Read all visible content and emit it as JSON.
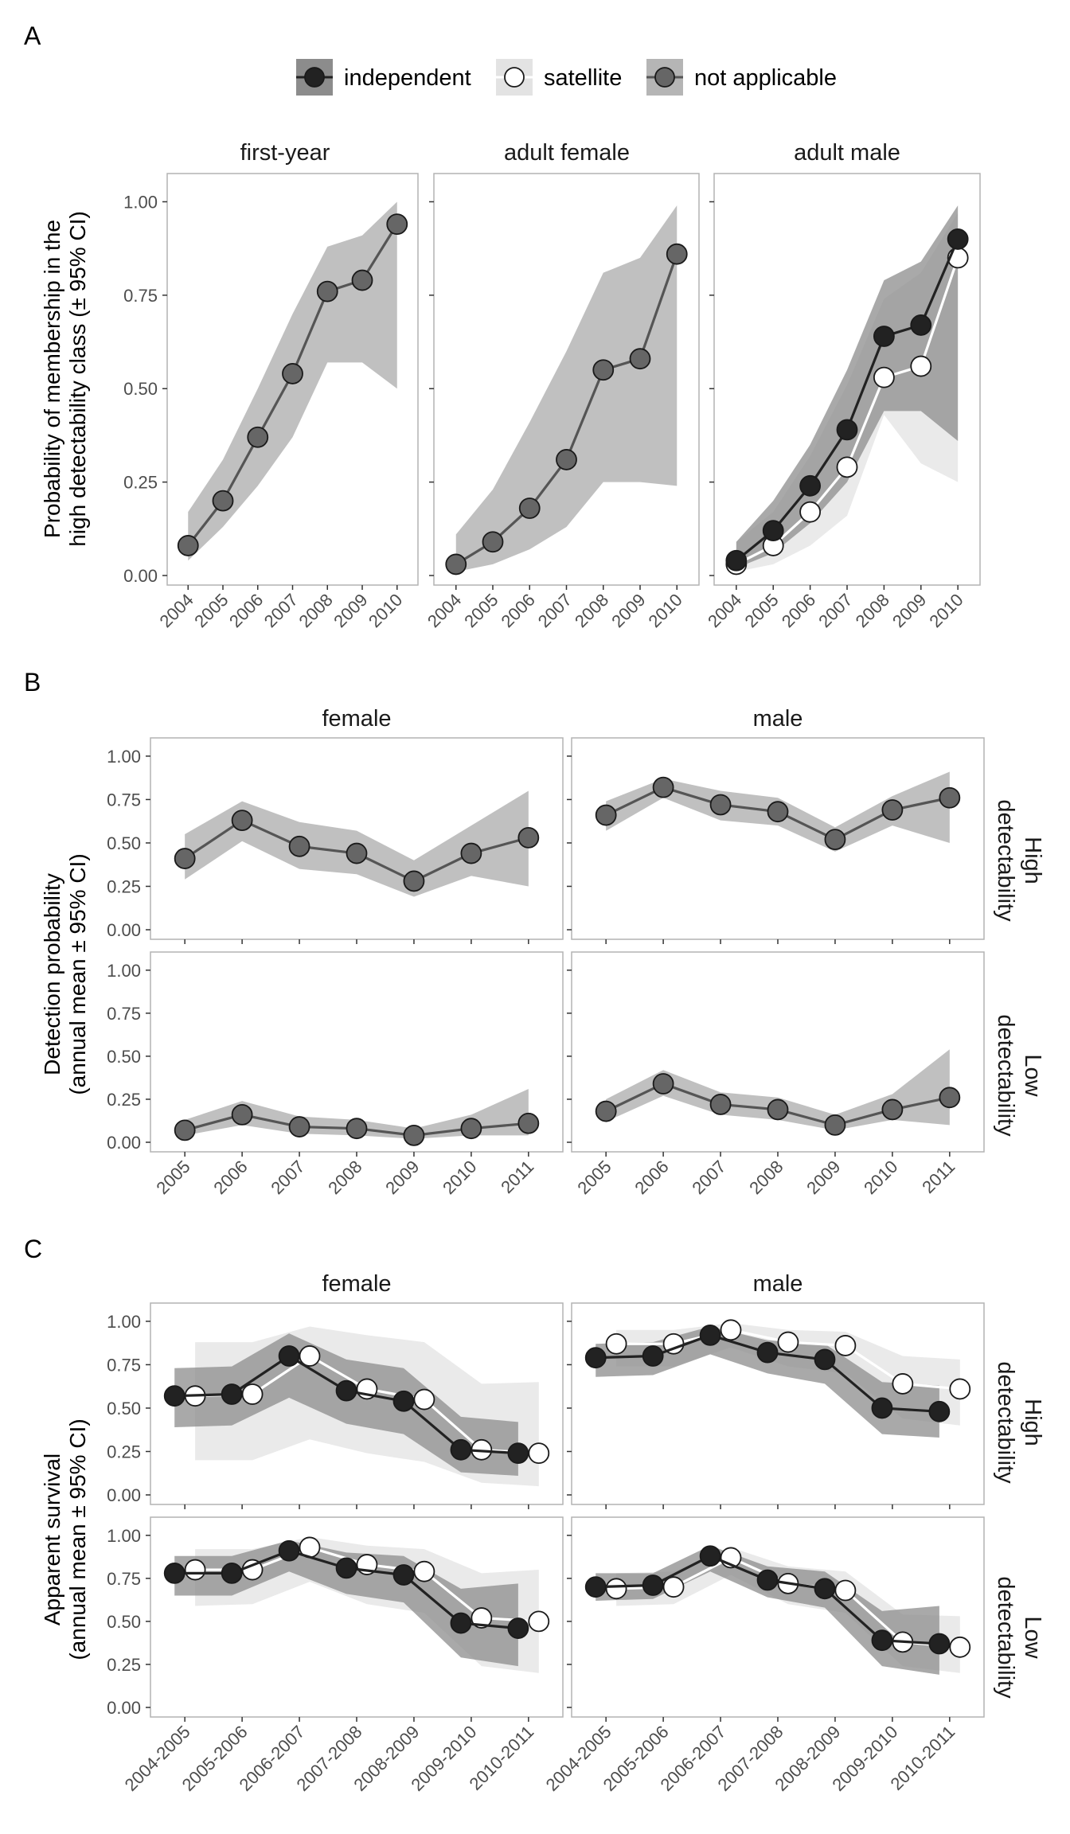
{
  "legend": {
    "items": [
      {
        "label": "independent",
        "fill": "#222222",
        "band": "#8c8c8c",
        "line": "#222222"
      },
      {
        "label": "satellite",
        "fill": "#ffffff",
        "band": "#e3e3e3",
        "line": "#ffffff"
      },
      {
        "label": "not applicable",
        "fill": "#666666",
        "band": "#b5b5b5",
        "line": "#555555"
      }
    ]
  },
  "chart_data": [
    {
      "panel": "A",
      "type": "line",
      "ylabel": [
        "Probability of membership in the",
        "high detectability class (± 95% CI)"
      ],
      "ylim": [
        0,
        1.05
      ],
      "yticks": [
        "0.00",
        "0.25",
        "0.50",
        "0.75",
        "1.00"
      ],
      "categories": [
        "2004",
        "2005",
        "2006",
        "2007",
        "2008",
        "2009",
        "2010"
      ],
      "facets": [
        {
          "title": "first-year",
          "series": [
            {
              "group": "not applicable",
              "values": [
                0.08,
                0.2,
                0.37,
                0.54,
                0.76,
                0.79,
                0.94
              ],
              "lower": [
                0.04,
                0.13,
                0.24,
                0.37,
                0.57,
                0.57,
                0.5
              ],
              "upper": [
                0.17,
                0.31,
                0.5,
                0.7,
                0.88,
                0.91,
                1.0
              ]
            }
          ]
        },
        {
          "title": "adult female",
          "series": [
            {
              "group": "not applicable",
              "values": [
                0.03,
                0.09,
                0.18,
                0.31,
                0.55,
                0.58,
                0.86
              ],
              "lower": [
                0.01,
                0.03,
                0.07,
                0.13,
                0.25,
                0.25,
                0.24
              ],
              "upper": [
                0.11,
                0.23,
                0.41,
                0.6,
                0.81,
                0.85,
                0.99
              ]
            }
          ]
        },
        {
          "title": "adult male",
          "series": [
            {
              "group": "satellite",
              "values": [
                0.03,
                0.08,
                0.17,
                0.29,
                0.53,
                0.56,
                0.85
              ],
              "lower": [
                0.01,
                0.03,
                0.08,
                0.16,
                0.43,
                0.3,
                0.25
              ],
              "upper": [
                0.09,
                0.17,
                0.32,
                0.51,
                0.74,
                0.81,
                0.97
              ]
            },
            {
              "group": "independent",
              "values": [
                0.04,
                0.12,
                0.24,
                0.39,
                0.64,
                0.67,
                0.9
              ],
              "lower": [
                0.02,
                0.06,
                0.14,
                0.25,
                0.44,
                0.44,
                0.36
              ],
              "upper": [
                0.09,
                0.2,
                0.35,
                0.55,
                0.79,
                0.84,
                0.99
              ]
            }
          ]
        }
      ]
    },
    {
      "panel": "B",
      "type": "line",
      "ylabel": [
        "Detection probability",
        "(annual mean ± 95% CI)"
      ],
      "ylim": [
        0,
        1.05
      ],
      "yticks": [
        "0.00",
        "0.25",
        "0.50",
        "0.75",
        "1.00"
      ],
      "categories": [
        "2005",
        "2006",
        "2007",
        "2008",
        "2009",
        "2010",
        "2011"
      ],
      "col_titles": [
        "female",
        "male"
      ],
      "row_titles": [
        [
          "High",
          "detectability"
        ],
        [
          "Low",
          "detectability"
        ]
      ],
      "facets": [
        {
          "row": 0,
          "col": 0,
          "series": [
            {
              "group": "not applicable",
              "values": [
                0.41,
                0.63,
                0.48,
                0.44,
                0.28,
                0.44,
                0.53
              ],
              "lower": [
                0.29,
                0.51,
                0.35,
                0.32,
                0.19,
                0.31,
                0.25
              ],
              "upper": [
                0.55,
                0.74,
                0.62,
                0.57,
                0.4,
                0.6,
                0.8
              ]
            }
          ]
        },
        {
          "row": 0,
          "col": 1,
          "series": [
            {
              "group": "not applicable",
              "values": [
                0.66,
                0.82,
                0.72,
                0.68,
                0.52,
                0.69,
                0.76
              ],
              "lower": [
                0.57,
                0.76,
                0.63,
                0.6,
                0.45,
                0.6,
                0.5
              ],
              "upper": [
                0.74,
                0.87,
                0.8,
                0.76,
                0.59,
                0.77,
                0.91
              ]
            }
          ]
        },
        {
          "row": 1,
          "col": 0,
          "series": [
            {
              "group": "not applicable",
              "values": [
                0.07,
                0.16,
                0.09,
                0.08,
                0.04,
                0.08,
                0.11
              ],
              "lower": [
                0.04,
                0.1,
                0.05,
                0.04,
                0.02,
                0.04,
                0.04
              ],
              "upper": [
                0.13,
                0.24,
                0.15,
                0.13,
                0.08,
                0.16,
                0.31
              ]
            }
          ]
        },
        {
          "row": 1,
          "col": 1,
          "series": [
            {
              "group": "not applicable",
              "values": [
                0.18,
                0.34,
                0.22,
                0.19,
                0.1,
                0.19,
                0.26
              ],
              "lower": [
                0.12,
                0.27,
                0.16,
                0.13,
                0.07,
                0.13,
                0.1
              ],
              "upper": [
                0.25,
                0.42,
                0.29,
                0.26,
                0.16,
                0.28,
                0.54
              ]
            }
          ]
        }
      ]
    },
    {
      "panel": "C",
      "type": "line",
      "ylabel": [
        "Apparent survival",
        "(annual mean ± 95% CI)"
      ],
      "ylim": [
        0,
        1.05
      ],
      "yticks": [
        "0.00",
        "0.25",
        "0.50",
        "0.75",
        "1.00"
      ],
      "categories": [
        "2004-2005",
        "2005-2006",
        "2006-2007",
        "2007-2008",
        "2008-2009",
        "2009-2010",
        "2010-2011"
      ],
      "col_titles": [
        "female",
        "male"
      ],
      "row_titles": [
        [
          "High",
          "detectability"
        ],
        [
          "Low",
          "detectability"
        ]
      ],
      "dodge": 0.18,
      "facets": [
        {
          "row": 0,
          "col": 0,
          "series": [
            {
              "group": "satellite",
              "values": [
                0.57,
                0.58,
                0.8,
                0.61,
                0.55,
                0.26,
                0.24
              ],
              "lower": [
                0.2,
                0.2,
                0.32,
                0.24,
                0.19,
                0.07,
                0.05
              ],
              "upper": [
                0.88,
                0.88,
                0.97,
                0.92,
                0.88,
                0.64,
                0.65
              ]
            },
            {
              "group": "independent",
              "values": [
                0.57,
                0.58,
                0.8,
                0.6,
                0.54,
                0.26,
                0.24
              ],
              "lower": [
                0.39,
                0.4,
                0.56,
                0.41,
                0.35,
                0.13,
                0.11
              ],
              "upper": [
                0.73,
                0.74,
                0.93,
                0.78,
                0.73,
                0.45,
                0.42
              ]
            }
          ]
        },
        {
          "row": 0,
          "col": 1,
          "series": [
            {
              "group": "satellite",
              "values": [
                0.87,
                0.87,
                0.95,
                0.88,
                0.86,
                0.64,
                0.61
              ],
              "lower": [
                0.74,
                0.74,
                0.85,
                0.74,
                0.7,
                0.44,
                0.4
              ],
              "upper": [
                0.95,
                0.95,
                0.99,
                0.95,
                0.94,
                0.8,
                0.78
              ]
            },
            {
              "group": "independent",
              "values": [
                0.79,
                0.8,
                0.92,
                0.82,
                0.78,
                0.5,
                0.48
              ],
              "lower": [
                0.68,
                0.69,
                0.81,
                0.7,
                0.64,
                0.35,
                0.33
              ],
              "upper": [
                0.87,
                0.88,
                0.97,
                0.89,
                0.87,
                0.65,
                0.63
              ]
            }
          ]
        },
        {
          "row": 1,
          "col": 0,
          "series": [
            {
              "group": "satellite",
              "values": [
                0.8,
                0.8,
                0.93,
                0.83,
                0.79,
                0.52,
                0.5
              ],
              "lower": [
                0.59,
                0.6,
                0.73,
                0.6,
                0.55,
                0.24,
                0.2
              ],
              "upper": [
                0.92,
                0.92,
                0.99,
                0.94,
                0.92,
                0.78,
                0.8
              ]
            },
            {
              "group": "independent",
              "values": [
                0.78,
                0.78,
                0.91,
                0.81,
                0.77,
                0.49,
                0.46
              ],
              "lower": [
                0.65,
                0.65,
                0.79,
                0.66,
                0.61,
                0.29,
                0.24
              ],
              "upper": [
                0.88,
                0.88,
                0.97,
                0.9,
                0.88,
                0.69,
                0.72
              ]
            }
          ]
        },
        {
          "row": 1,
          "col": 1,
          "series": [
            {
              "group": "satellite",
              "values": [
                0.69,
                0.7,
                0.87,
                0.72,
                0.68,
                0.38,
                0.35
              ],
              "lower": [
                0.59,
                0.6,
                0.77,
                0.6,
                0.55,
                0.24,
                0.2
              ],
              "upper": [
                0.78,
                0.79,
                0.93,
                0.82,
                0.79,
                0.54,
                0.53
              ]
            },
            {
              "group": "independent",
              "values": [
                0.7,
                0.71,
                0.88,
                0.74,
                0.69,
                0.39,
                0.37
              ],
              "lower": [
                0.62,
                0.63,
                0.79,
                0.64,
                0.58,
                0.24,
                0.19
              ],
              "upper": [
                0.78,
                0.78,
                0.94,
                0.82,
                0.79,
                0.56,
                0.59
              ]
            }
          ]
        }
      ]
    }
  ]
}
